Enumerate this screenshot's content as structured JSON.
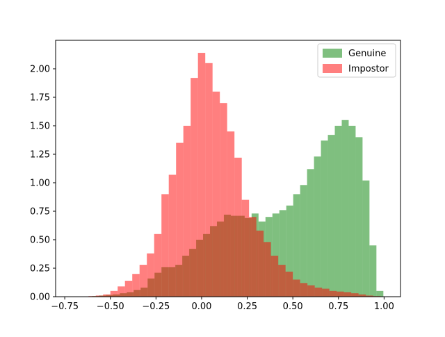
{
  "chart_data": {
    "type": "histogram",
    "xlabel": "",
    "ylabel": "",
    "xlim": [
      -0.8,
      1.09
    ],
    "ylim": [
      0,
      2.25
    ],
    "x_ticks": [
      -0.75,
      -0.5,
      -0.25,
      0.0,
      0.25,
      0.5,
      0.75,
      1.0
    ],
    "x_tick_labels": [
      "−0.75",
      "−0.50",
      "−0.25",
      "0.00",
      "0.25",
      "0.50",
      "0.75",
      "1.00"
    ],
    "y_ticks": [
      0,
      0.25,
      0.5,
      0.75,
      1.0,
      1.25,
      1.5,
      1.75,
      2.0
    ],
    "y_tick_labels": [
      "0.00",
      "0.25",
      "0.50",
      "0.75",
      "1.00",
      "1.25",
      "1.50",
      "1.75",
      "2.00"
    ],
    "legend_position": "top-right",
    "grid": false,
    "series": [
      {
        "name": "Genuine",
        "color": "#008000",
        "opacity": 0.5,
        "bins": [
          {
            "x0": -0.6,
            "x1": -0.562,
            "y": 0.005
          },
          {
            "x0": -0.562,
            "x1": -0.524,
            "y": 0.01
          },
          {
            "x0": -0.524,
            "x1": -0.486,
            "y": 0.015
          },
          {
            "x0": -0.486,
            "x1": -0.448,
            "y": 0.02
          },
          {
            "x0": -0.448,
            "x1": -0.41,
            "y": 0.03
          },
          {
            "x0": -0.41,
            "x1": -0.372,
            "y": 0.04
          },
          {
            "x0": -0.372,
            "x1": -0.334,
            "y": 0.06
          },
          {
            "x0": -0.334,
            "x1": -0.296,
            "y": 0.08
          },
          {
            "x0": -0.296,
            "x1": -0.258,
            "y": 0.16
          },
          {
            "x0": -0.258,
            "x1": -0.22,
            "y": 0.21
          },
          {
            "x0": -0.22,
            "x1": -0.182,
            "y": 0.26
          },
          {
            "x0": -0.182,
            "x1": -0.144,
            "y": 0.26
          },
          {
            "x0": -0.144,
            "x1": -0.106,
            "y": 0.28
          },
          {
            "x0": -0.106,
            "x1": -0.068,
            "y": 0.36
          },
          {
            "x0": -0.068,
            "x1": -0.03,
            "y": 0.42
          },
          {
            "x0": -0.03,
            "x1": 0.008,
            "y": 0.5
          },
          {
            "x0": 0.008,
            "x1": 0.046,
            "y": 0.55
          },
          {
            "x0": 0.046,
            "x1": 0.084,
            "y": 0.62
          },
          {
            "x0": 0.084,
            "x1": 0.122,
            "y": 0.66
          },
          {
            "x0": 0.122,
            "x1": 0.16,
            "y": 0.72
          },
          {
            "x0": 0.16,
            "x1": 0.198,
            "y": 0.71
          },
          {
            "x0": 0.198,
            "x1": 0.236,
            "y": 0.71
          },
          {
            "x0": 0.236,
            "x1": 0.274,
            "y": 0.69
          },
          {
            "x0": 0.274,
            "x1": 0.312,
            "y": 0.73
          },
          {
            "x0": 0.312,
            "x1": 0.35,
            "y": 0.66
          },
          {
            "x0": 0.35,
            "x1": 0.388,
            "y": 0.7
          },
          {
            "x0": 0.388,
            "x1": 0.426,
            "y": 0.73
          },
          {
            "x0": 0.426,
            "x1": 0.464,
            "y": 0.76
          },
          {
            "x0": 0.464,
            "x1": 0.502,
            "y": 0.8
          },
          {
            "x0": 0.502,
            "x1": 0.54,
            "y": 0.9
          },
          {
            "x0": 0.54,
            "x1": 0.578,
            "y": 0.98
          },
          {
            "x0": 0.578,
            "x1": 0.616,
            "y": 1.12
          },
          {
            "x0": 0.616,
            "x1": 0.654,
            "y": 1.23
          },
          {
            "x0": 0.654,
            "x1": 0.692,
            "y": 1.37
          },
          {
            "x0": 0.692,
            "x1": 0.73,
            "y": 1.42
          },
          {
            "x0": 0.73,
            "x1": 0.768,
            "y": 1.5
          },
          {
            "x0": 0.768,
            "x1": 0.806,
            "y": 1.55
          },
          {
            "x0": 0.806,
            "x1": 0.844,
            "y": 1.5
          },
          {
            "x0": 0.844,
            "x1": 0.882,
            "y": 1.4
          },
          {
            "x0": 0.882,
            "x1": 0.92,
            "y": 1.02
          },
          {
            "x0": 0.92,
            "x1": 0.958,
            "y": 0.45
          },
          {
            "x0": 0.958,
            "x1": 0.996,
            "y": 0.05
          }
        ]
      },
      {
        "name": "Impostor",
        "color": "#ff0000",
        "opacity": 0.5,
        "bins": [
          {
            "x0": -0.7,
            "x1": -0.66,
            "y": 0.002
          },
          {
            "x0": -0.66,
            "x1": -0.62,
            "y": 0.003
          },
          {
            "x0": -0.62,
            "x1": -0.58,
            "y": 0.005
          },
          {
            "x0": -0.58,
            "x1": -0.54,
            "y": 0.01
          },
          {
            "x0": -0.54,
            "x1": -0.5,
            "y": 0.02
          },
          {
            "x0": -0.5,
            "x1": -0.46,
            "y": 0.05
          },
          {
            "x0": -0.46,
            "x1": -0.42,
            "y": 0.09
          },
          {
            "x0": -0.42,
            "x1": -0.38,
            "y": 0.14
          },
          {
            "x0": -0.38,
            "x1": -0.34,
            "y": 0.2
          },
          {
            "x0": -0.34,
            "x1": -0.3,
            "y": 0.28
          },
          {
            "x0": -0.3,
            "x1": -0.26,
            "y": 0.38
          },
          {
            "x0": -0.26,
            "x1": -0.22,
            "y": 0.55
          },
          {
            "x0": -0.22,
            "x1": -0.18,
            "y": 0.9
          },
          {
            "x0": -0.18,
            "x1": -0.14,
            "y": 1.07
          },
          {
            "x0": -0.14,
            "x1": -0.1,
            "y": 1.35
          },
          {
            "x0": -0.1,
            "x1": -0.06,
            "y": 1.5
          },
          {
            "x0": -0.06,
            "x1": -0.02,
            "y": 1.92
          },
          {
            "x0": -0.02,
            "x1": 0.02,
            "y": 2.14
          },
          {
            "x0": 0.02,
            "x1": 0.06,
            "y": 2.05
          },
          {
            "x0": 0.06,
            "x1": 0.1,
            "y": 1.8
          },
          {
            "x0": 0.1,
            "x1": 0.14,
            "y": 1.7
          },
          {
            "x0": 0.14,
            "x1": 0.18,
            "y": 1.45
          },
          {
            "x0": 0.18,
            "x1": 0.22,
            "y": 1.22
          },
          {
            "x0": 0.22,
            "x1": 0.26,
            "y": 0.85
          },
          {
            "x0": 0.26,
            "x1": 0.3,
            "y": 0.7
          },
          {
            "x0": 0.3,
            "x1": 0.34,
            "y": 0.58
          },
          {
            "x0": 0.34,
            "x1": 0.38,
            "y": 0.48
          },
          {
            "x0": 0.38,
            "x1": 0.42,
            "y": 0.36
          },
          {
            "x0": 0.42,
            "x1": 0.46,
            "y": 0.28
          },
          {
            "x0": 0.46,
            "x1": 0.5,
            "y": 0.22
          },
          {
            "x0": 0.5,
            "x1": 0.54,
            "y": 0.15
          },
          {
            "x0": 0.54,
            "x1": 0.58,
            "y": 0.12
          },
          {
            "x0": 0.58,
            "x1": 0.62,
            "y": 0.1
          },
          {
            "x0": 0.62,
            "x1": 0.66,
            "y": 0.08
          },
          {
            "x0": 0.66,
            "x1": 0.7,
            "y": 0.07
          },
          {
            "x0": 0.7,
            "x1": 0.74,
            "y": 0.05
          },
          {
            "x0": 0.74,
            "x1": 0.78,
            "y": 0.045
          },
          {
            "x0": 0.78,
            "x1": 0.82,
            "y": 0.04
          },
          {
            "x0": 0.82,
            "x1": 0.86,
            "y": 0.03
          },
          {
            "x0": 0.86,
            "x1": 0.9,
            "y": 0.02
          },
          {
            "x0": 0.9,
            "x1": 0.94,
            "y": 0.01
          },
          {
            "x0": 0.94,
            "x1": 0.98,
            "y": 0.005
          }
        ]
      }
    ]
  }
}
